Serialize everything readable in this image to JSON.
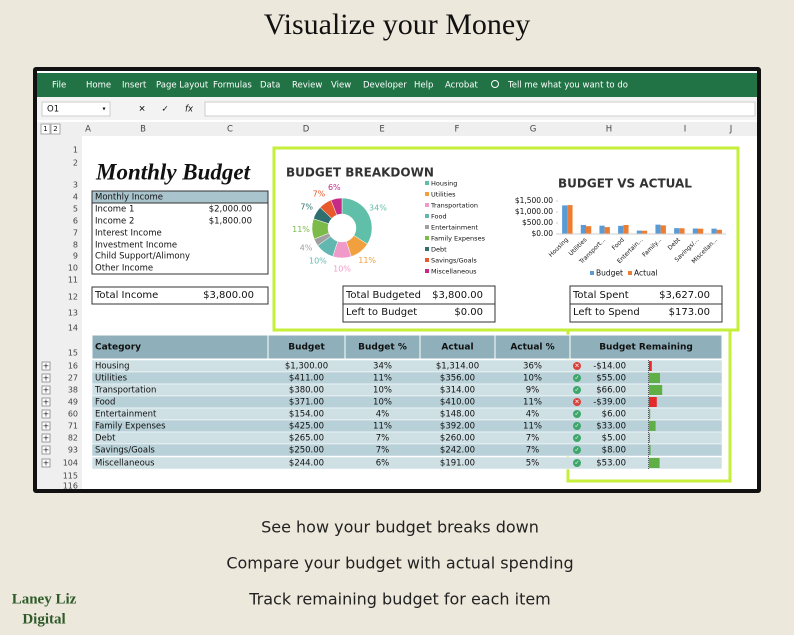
{
  "header": {
    "title": "Visualize your Money"
  },
  "ribbon": {
    "tabs": [
      "File",
      "Home",
      "Insert",
      "Page Layout",
      "Formulas",
      "Data",
      "Review",
      "View",
      "Developer",
      "Help",
      "Acrobat"
    ],
    "tell_me": "Tell me what you want to do"
  },
  "formula_bar": {
    "name_box": "O1",
    "fx": "fx"
  },
  "sheet": {
    "columns": [
      "A",
      "B",
      "C",
      "D",
      "E",
      "F",
      "G",
      "H",
      "I",
      "J"
    ],
    "outline_levels": [
      "1",
      "2"
    ],
    "row_numbers": [
      "1",
      "2",
      "3",
      "4",
      "5",
      "6",
      "7",
      "8",
      "9",
      "10",
      "11",
      "12",
      "13",
      "14",
      "15",
      "16",
      "27",
      "38",
      "49",
      "60",
      "71",
      "82",
      "93",
      "104",
      "115",
      "116"
    ]
  },
  "income": {
    "title": "Monthly Budget",
    "header": "Monthly Income",
    "rows": [
      {
        "label": "Income 1",
        "amount": "$2,000.00"
      },
      {
        "label": "Income 2",
        "amount": "$1,800.00"
      },
      {
        "label": "Interest Income"
      },
      {
        "label": "Investment Income"
      },
      {
        "label": "Child Support/Alimony"
      },
      {
        "label": "Other Income"
      }
    ],
    "total": {
      "label": "Total Income",
      "amount": "$3,800.00"
    }
  },
  "chart_data": [
    {
      "type": "pie",
      "title": "BUDGET BREAKDOWN",
      "donut": true,
      "categories": [
        "Housing",
        "Utilities",
        "Transportation",
        "Food",
        "Entertainment",
        "Family Expenses",
        "Debt",
        "Savings/Goals",
        "Miscellaneous"
      ],
      "values": [
        34,
        11,
        10,
        10,
        4,
        11,
        7,
        7,
        6
      ],
      "value_labels": [
        "34%",
        "11%",
        "10%",
        "10%",
        "4%",
        "11%",
        "7%",
        "7%",
        "6%"
      ],
      "colors": [
        "#5fbfa8",
        "#f0a03c",
        "#ef9ac8",
        "#62b8b0",
        "#a0a0a0",
        "#7cba4a",
        "#2f6f6f",
        "#e85a2c",
        "#c42a86"
      ]
    },
    {
      "type": "bar",
      "title": "BUDGET VS ACTUAL",
      "categories": [
        "Housing",
        "Utilities",
        "Transport...",
        "Food",
        "Entertain...",
        "Family...",
        "Debt",
        "Savings/...",
        "Miscellan..."
      ],
      "series": [
        {
          "name": "Budget",
          "color": "#5b9bd5",
          "values": [
            1300,
            411,
            380,
            371,
            154,
            425,
            265,
            250,
            244
          ]
        },
        {
          "name": "Actual",
          "color": "#ed7d31",
          "values": [
            1314,
            356,
            314,
            410,
            148,
            392,
            260,
            242,
            191
          ]
        }
      ],
      "ylim": [
        0,
        1500
      ],
      "yticks": [
        {
          "value": 0,
          "label": "$0.00"
        },
        {
          "value": 500,
          "label": "$500.00"
        },
        {
          "value": 1000,
          "label": "$1,000.00"
        },
        {
          "value": 1500,
          "label": "$1,500.00"
        }
      ],
      "legend": "bottom"
    }
  ],
  "breakdown_totals": [
    {
      "label": "Total Budgeted",
      "amount": "$3,800.00"
    },
    {
      "label": "Left to Budget",
      "amount": "$0.00"
    }
  ],
  "spend_totals": [
    {
      "label": "Total Spent",
      "amount": "$3,627.00"
    },
    {
      "label": "Left to Spend",
      "amount": "$173.00"
    }
  ],
  "table": {
    "headers": [
      "Category",
      "Budget",
      "Budget %",
      "Actual",
      "Actual %",
      "Budget Remaining"
    ],
    "rows": [
      [
        "Housing",
        "$1,300.00",
        "34%",
        "$1,314.00",
        "36%",
        "-$14.00"
      ],
      [
        "Utilities",
        "$411.00",
        "11%",
        "$356.00",
        "10%",
        "$55.00"
      ],
      [
        "Transportation",
        "$380.00",
        "10%",
        "$314.00",
        "9%",
        "$66.00"
      ],
      [
        "Food",
        "$371.00",
        "10%",
        "$410.00",
        "11%",
        "-$39.00"
      ],
      [
        "Entertainment",
        "$154.00",
        "4%",
        "$148.00",
        "4%",
        "$6.00"
      ],
      [
        "Family Expenses",
        "$425.00",
        "11%",
        "$392.00",
        "11%",
        "$33.00"
      ],
      [
        "Debt",
        "$265.00",
        "7%",
        "$260.00",
        "7%",
        "$5.00"
      ],
      [
        "Savings/Goals",
        "$250.00",
        "7%",
        "$242.00",
        "7%",
        "$8.00"
      ],
      [
        "Miscellaneous",
        "$244.00",
        "6%",
        "$191.00",
        "5%",
        "$53.00"
      ]
    ],
    "remaining_values": [
      -14,
      55,
      66,
      -39,
      6,
      33,
      5,
      8,
      53
    ]
  },
  "footer": {
    "lines": [
      "See how your budget breaks down",
      "Compare your budget with actual spending",
      "Track remaining budget for each item"
    ],
    "brand": [
      "Laney Liz",
      "Digital"
    ]
  }
}
